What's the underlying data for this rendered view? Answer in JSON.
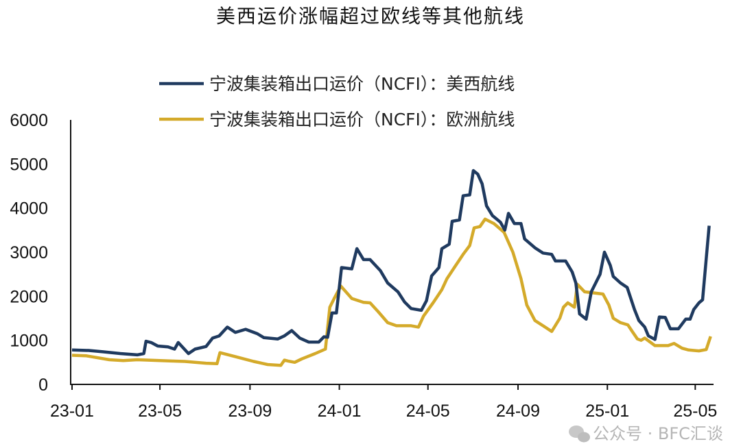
{
  "chart_data": {
    "type": "line",
    "title": "美西运价涨幅超过欧线等其他航线",
    "xlabel": "",
    "ylabel": "",
    "ylim": [
      0,
      6000
    ],
    "yticks": [
      "0",
      "1000",
      "2000",
      "3000",
      "4000",
      "5000",
      "6000"
    ],
    "xlim": [
      "2023-01-01",
      "2025-05-26"
    ],
    "xticks": [
      {
        "label": "23-01",
        "date": "2023-01-01"
      },
      {
        "label": "23-05",
        "date": "2023-05-01"
      },
      {
        "label": "23-09",
        "date": "2023-09-01"
      },
      {
        "label": "24-01",
        "date": "2024-01-01"
      },
      {
        "label": "24-05",
        "date": "2024-05-01"
      },
      {
        "label": "24-09",
        "date": "2024-09-01"
      },
      {
        "label": "25-01",
        "date": "2025-01-01"
      },
      {
        "label": "25-05",
        "date": "2025-05-01"
      }
    ],
    "grid": false,
    "legend_position": "top",
    "series": [
      {
        "name": "宁波集装箱出口运价（NCFI）：美西航线",
        "color": "#1f3a5f",
        "points": [
          [
            "2023-01-01",
            780
          ],
          [
            "2023-01-24",
            770
          ],
          [
            "2023-02-12",
            740
          ],
          [
            "2023-03-08",
            700
          ],
          [
            "2023-03-31",
            670
          ],
          [
            "2023-04-09",
            700
          ],
          [
            "2023-04-12",
            980
          ],
          [
            "2023-04-19",
            950
          ],
          [
            "2023-04-28",
            870
          ],
          [
            "2023-05-12",
            850
          ],
          [
            "2023-05-21",
            800
          ],
          [
            "2023-05-26",
            950
          ],
          [
            "2023-06-09",
            700
          ],
          [
            "2023-06-18",
            800
          ],
          [
            "2023-07-03",
            860
          ],
          [
            "2023-07-12",
            1050
          ],
          [
            "2023-07-21",
            1100
          ],
          [
            "2023-08-01",
            1300
          ],
          [
            "2023-08-12",
            1180
          ],
          [
            "2023-08-26",
            1250
          ],
          [
            "2023-09-11",
            1150
          ],
          [
            "2023-09-20",
            1060
          ],
          [
            "2023-10-09",
            1030
          ],
          [
            "2023-10-18",
            1100
          ],
          [
            "2023-10-28",
            1220
          ],
          [
            "2023-11-08",
            1050
          ],
          [
            "2023-11-20",
            960
          ],
          [
            "2023-12-04",
            960
          ],
          [
            "2023-12-11",
            1080
          ],
          [
            "2023-12-16",
            1070
          ],
          [
            "2023-12-22",
            1620
          ],
          [
            "2023-12-28",
            1620
          ],
          [
            "2024-01-04",
            2650
          ],
          [
            "2024-01-18",
            2620
          ],
          [
            "2024-01-25",
            3080
          ],
          [
            "2024-02-03",
            2830
          ],
          [
            "2024-02-12",
            2830
          ],
          [
            "2024-02-26",
            2580
          ],
          [
            "2024-03-07",
            2300
          ],
          [
            "2024-03-21",
            2100
          ],
          [
            "2024-03-30",
            1870
          ],
          [
            "2024-04-08",
            1720
          ],
          [
            "2024-04-22",
            1680
          ],
          [
            "2024-04-29",
            1900
          ],
          [
            "2024-05-06",
            2460
          ],
          [
            "2024-05-16",
            2650
          ],
          [
            "2024-05-20",
            3080
          ],
          [
            "2024-05-30",
            3180
          ],
          [
            "2024-06-03",
            3700
          ],
          [
            "2024-06-13",
            3730
          ],
          [
            "2024-06-18",
            4280
          ],
          [
            "2024-06-27",
            4300
          ],
          [
            "2024-07-02",
            4850
          ],
          [
            "2024-07-08",
            4770
          ],
          [
            "2024-07-14",
            4550
          ],
          [
            "2024-07-20",
            4050
          ],
          [
            "2024-07-28",
            3830
          ],
          [
            "2024-08-08",
            3680
          ],
          [
            "2024-08-14",
            3500
          ],
          [
            "2024-08-19",
            3880
          ],
          [
            "2024-08-27",
            3650
          ],
          [
            "2024-09-05",
            3650
          ],
          [
            "2024-09-10",
            3300
          ],
          [
            "2024-09-24",
            3100
          ],
          [
            "2024-10-05",
            2980
          ],
          [
            "2024-10-17",
            2950
          ],
          [
            "2024-10-22",
            2800
          ],
          [
            "2024-11-05",
            2800
          ],
          [
            "2024-11-14",
            2550
          ],
          [
            "2024-11-19",
            2300
          ],
          [
            "2024-11-24",
            1600
          ],
          [
            "2024-12-03",
            1480
          ],
          [
            "2024-12-10",
            2100
          ],
          [
            "2024-12-22",
            2500
          ],
          [
            "2024-12-28",
            3000
          ],
          [
            "2025-01-05",
            2700
          ],
          [
            "2025-01-09",
            2450
          ],
          [
            "2025-01-19",
            2300
          ],
          [
            "2025-01-28",
            2200
          ],
          [
            "2025-02-07",
            1700
          ],
          [
            "2025-02-13",
            1450
          ],
          [
            "2025-02-21",
            1300
          ],
          [
            "2025-02-26",
            1100
          ],
          [
            "2025-03-07",
            1020
          ],
          [
            "2025-03-13",
            1530
          ],
          [
            "2025-03-21",
            1520
          ],
          [
            "2025-03-28",
            1260
          ],
          [
            "2025-04-08",
            1260
          ],
          [
            "2025-04-18",
            1480
          ],
          [
            "2025-04-24",
            1480
          ],
          [
            "2025-04-29",
            1700
          ],
          [
            "2025-05-06",
            1850
          ],
          [
            "2025-05-11",
            1920
          ],
          [
            "2025-05-20",
            3600
          ]
        ]
      },
      {
        "name": "宁波集装箱出口运价（NCFI）：欧洲航线",
        "color": "#d4aa2a",
        "points": [
          [
            "2023-01-01",
            660
          ],
          [
            "2023-01-20",
            650
          ],
          [
            "2023-02-21",
            560
          ],
          [
            "2023-03-12",
            540
          ],
          [
            "2023-03-31",
            560
          ],
          [
            "2023-05-17",
            530
          ],
          [
            "2023-06-04",
            520
          ],
          [
            "2023-07-03",
            480
          ],
          [
            "2023-07-18",
            470
          ],
          [
            "2023-07-22",
            720
          ],
          [
            "2023-08-14",
            620
          ],
          [
            "2023-09-06",
            520
          ],
          [
            "2023-09-25",
            450
          ],
          [
            "2023-10-13",
            430
          ],
          [
            "2023-10-18",
            550
          ],
          [
            "2023-10-23",
            530
          ],
          [
            "2023-11-01",
            500
          ],
          [
            "2023-11-11",
            580
          ],
          [
            "2023-11-29",
            700
          ],
          [
            "2023-12-13",
            800
          ],
          [
            "2023-12-19",
            1750
          ],
          [
            "2023-12-25",
            1950
          ],
          [
            "2024-01-03",
            2230
          ],
          [
            "2024-01-18",
            1950
          ],
          [
            "2024-02-03",
            1860
          ],
          [
            "2024-02-12",
            1850
          ],
          [
            "2024-02-23",
            1650
          ],
          [
            "2024-03-07",
            1400
          ],
          [
            "2024-03-19",
            1330
          ],
          [
            "2024-04-08",
            1330
          ],
          [
            "2024-04-18",
            1300
          ],
          [
            "2024-04-25",
            1550
          ],
          [
            "2024-05-08",
            1850
          ],
          [
            "2024-05-20",
            2150
          ],
          [
            "2024-05-27",
            2400
          ],
          [
            "2024-06-08",
            2700
          ],
          [
            "2024-06-18",
            2950
          ],
          [
            "2024-06-27",
            3150
          ],
          [
            "2024-07-03",
            3550
          ],
          [
            "2024-07-11",
            3580
          ],
          [
            "2024-07-18",
            3750
          ],
          [
            "2024-07-30",
            3650
          ],
          [
            "2024-08-13",
            3450
          ],
          [
            "2024-08-25",
            3000
          ],
          [
            "2024-09-05",
            2400
          ],
          [
            "2024-09-13",
            1800
          ],
          [
            "2024-09-24",
            1450
          ],
          [
            "2024-10-08",
            1300
          ],
          [
            "2024-10-17",
            1200
          ],
          [
            "2024-10-28",
            1500
          ],
          [
            "2024-11-02",
            1750
          ],
          [
            "2024-11-08",
            1850
          ],
          [
            "2024-11-17",
            1750
          ],
          [
            "2024-11-21",
            2270
          ],
          [
            "2024-12-01",
            2100
          ],
          [
            "2024-12-26",
            2050
          ],
          [
            "2025-01-03",
            1800
          ],
          [
            "2025-01-09",
            1500
          ],
          [
            "2025-01-19",
            1400
          ],
          [
            "2025-01-29",
            1350
          ],
          [
            "2025-02-04",
            1200
          ],
          [
            "2025-02-11",
            1030
          ],
          [
            "2025-02-16",
            1000
          ],
          [
            "2025-02-21",
            1050
          ],
          [
            "2025-03-07",
            880
          ],
          [
            "2025-03-25",
            880
          ],
          [
            "2025-04-02",
            930
          ],
          [
            "2025-04-13",
            820
          ],
          [
            "2025-04-22",
            780
          ],
          [
            "2025-05-06",
            760
          ],
          [
            "2025-05-16",
            790
          ],
          [
            "2025-05-22",
            1090
          ]
        ]
      }
    ]
  },
  "watermark": "公众号 · BFC汇谈"
}
